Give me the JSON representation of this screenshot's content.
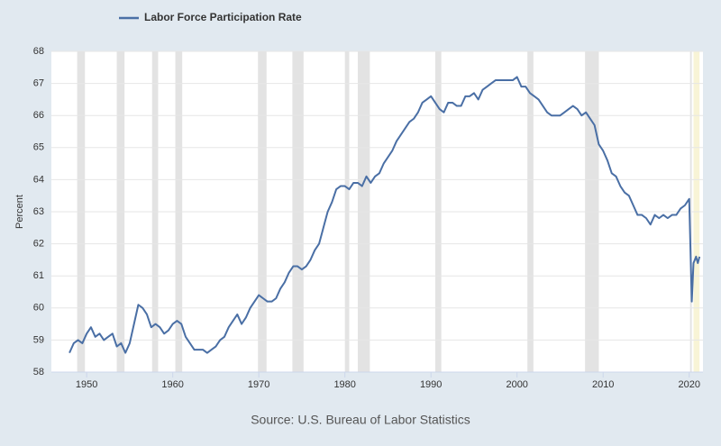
{
  "chart_data": {
    "type": "line",
    "legend_label": "Labor Force Participation Rate",
    "y_label": "Percent",
    "source": "Source: U.S. Bureau of Labor Statistics",
    "series": [
      {
        "name": "Labor Force Participation Rate",
        "color": "#4a6fa5",
        "x": [
          1948,
          1948.5,
          1949,
          1949.5,
          1950,
          1950.5,
          1951,
          1951.5,
          1952,
          1952.5,
          1953,
          1953.5,
          1954,
          1954.5,
          1955,
          1955.5,
          1956,
          1956.5,
          1957,
          1957.5,
          1958,
          1958.5,
          1959,
          1959.5,
          1960,
          1960.5,
          1961,
          1961.5,
          1962,
          1962.5,
          1963,
          1963.5,
          1964,
          1964.5,
          1965,
          1965.5,
          1966,
          1966.5,
          1967,
          1967.5,
          1968,
          1968.5,
          1969,
          1969.5,
          1970,
          1970.5,
          1971,
          1971.5,
          1972,
          1972.5,
          1973,
          1973.5,
          1974,
          1974.5,
          1975,
          1975.5,
          1976,
          1976.5,
          1977,
          1977.5,
          1978,
          1978.5,
          1979,
          1979.5,
          1980,
          1980.5,
          1981,
          1981.5,
          1982,
          1982.5,
          1983,
          1983.5,
          1984,
          1984.5,
          1985,
          1985.5,
          1986,
          1986.5,
          1987,
          1987.5,
          1988,
          1988.5,
          1989,
          1989.5,
          1990,
          1990.5,
          1991,
          1991.5,
          1992,
          1992.5,
          1993,
          1993.5,
          1994,
          1994.5,
          1995,
          1995.5,
          1996,
          1996.5,
          1997,
          1997.5,
          1998,
          1998.5,
          1999,
          1999.5,
          2000,
          2000.5,
          2001,
          2001.5,
          2002,
          2002.5,
          2003,
          2003.5,
          2004,
          2004.5,
          2005,
          2005.5,
          2006,
          2006.5,
          2007,
          2007.5,
          2008,
          2008.5,
          2009,
          2009.5,
          2010,
          2010.5,
          2011,
          2011.5,
          2012,
          2012.5,
          2013,
          2013.5,
          2014,
          2014.5,
          2015,
          2015.5,
          2016,
          2016.5,
          2017,
          2017.5,
          2018,
          2018.5,
          2019,
          2019.5,
          2020,
          2020.3,
          2020.5,
          2020.8,
          2021,
          2021.2
        ],
        "values": [
          58.6,
          58.9,
          59.0,
          58.9,
          59.2,
          59.4,
          59.1,
          59.2,
          59.0,
          59.1,
          59.2,
          58.8,
          58.9,
          58.6,
          58.9,
          59.5,
          60.1,
          60.0,
          59.8,
          59.4,
          59.5,
          59.4,
          59.2,
          59.3,
          59.5,
          59.6,
          59.5,
          59.1,
          58.9,
          58.7,
          58.7,
          58.7,
          58.6,
          58.7,
          58.8,
          59.0,
          59.1,
          59.4,
          59.6,
          59.8,
          59.5,
          59.7,
          60.0,
          60.2,
          60.4,
          60.3,
          60.2,
          60.2,
          60.3,
          60.6,
          60.8,
          61.1,
          61.3,
          61.3,
          61.2,
          61.3,
          61.5,
          61.8,
          62.0,
          62.5,
          63.0,
          63.3,
          63.7,
          63.8,
          63.8,
          63.7,
          63.9,
          63.9,
          63.8,
          64.1,
          63.9,
          64.1,
          64.2,
          64.5,
          64.7,
          64.9,
          65.2,
          65.4,
          65.6,
          65.8,
          65.9,
          66.1,
          66.4,
          66.5,
          66.6,
          66.4,
          66.2,
          66.1,
          66.4,
          66.4,
          66.3,
          66.3,
          66.6,
          66.6,
          66.7,
          66.5,
          66.8,
          66.9,
          67.0,
          67.1,
          67.1,
          67.1,
          67.1,
          67.1,
          67.2,
          66.9,
          66.9,
          66.7,
          66.6,
          66.5,
          66.3,
          66.1,
          66.0,
          66.0,
          66.0,
          66.1,
          66.2,
          66.3,
          66.2,
          66.0,
          66.1,
          65.9,
          65.7,
          65.1,
          64.9,
          64.6,
          64.2,
          64.1,
          63.8,
          63.6,
          63.5,
          63.2,
          62.9,
          62.9,
          62.8,
          62.6,
          62.9,
          62.8,
          62.9,
          62.8,
          62.9,
          62.9,
          63.1,
          63.2,
          63.4,
          60.2,
          61.4,
          61.6,
          61.4,
          61.6
        ]
      }
    ],
    "recessions": [
      [
        1948.9,
        1949.8
      ],
      [
        1953.5,
        1954.4
      ],
      [
        1957.6,
        1958.3
      ],
      [
        1960.3,
        1961.1
      ],
      [
        1969.9,
        1970.9
      ],
      [
        1973.9,
        1975.2
      ],
      [
        1980.0,
        1980.5
      ],
      [
        1981.5,
        1982.9
      ],
      [
        1990.5,
        1991.2
      ],
      [
        2001.2,
        2001.9
      ],
      [
        2007.9,
        2009.5
      ],
      [
        2020.1,
        2020.3
      ]
    ],
    "recession_color": "#e3e3e3",
    "highlight": [
      2020.5,
      2021.2
    ],
    "highlight_color": "#f8f4d6",
    "xlim": [
      1945.9,
      2021.6
    ],
    "xticks": [
      1950,
      1960,
      1970,
      1980,
      1990,
      2000,
      2010,
      2020
    ],
    "ylim": [
      58,
      68
    ],
    "yticks": [
      58,
      59,
      60,
      61,
      62,
      63,
      64,
      65,
      66,
      67,
      68
    ],
    "grid": true
  }
}
